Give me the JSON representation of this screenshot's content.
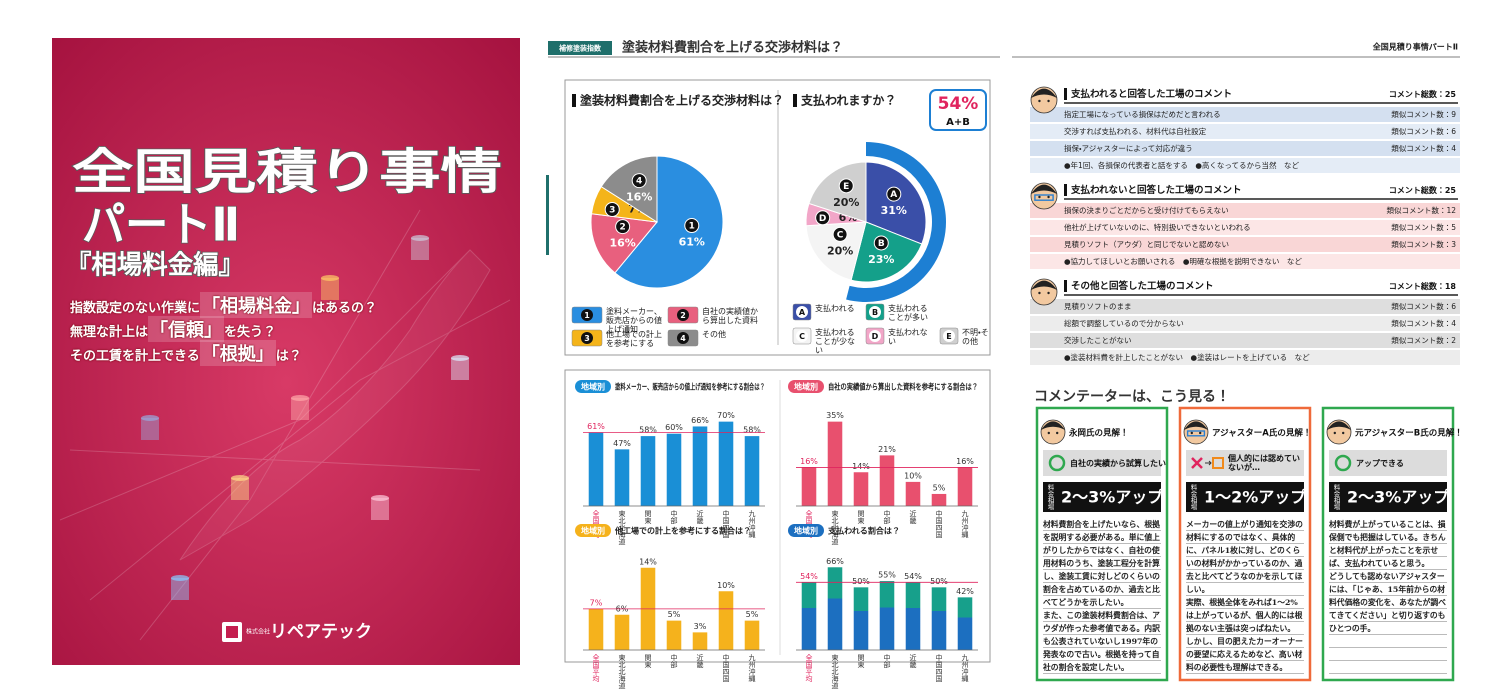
{
  "cover": {
    "title": "全国見積り事情",
    "part": "パートⅡ",
    "edition": "『相場料金編』",
    "lines": [
      [
        "指数設定のない作業に",
        "「相場料金」",
        "はあるの？"
      ],
      [
        "無理な計上は",
        "「信頼」",
        "を失う？"
      ],
      [
        "その工賃を計上できる",
        "「根拠」",
        "は？"
      ]
    ],
    "company_type": "株式会社",
    "company": "リペアテック"
  },
  "middle": {
    "tag": "補修塗装指数",
    "heading": "塗装材料費割合を上げる交渉材料は？",
    "pies": [
      {
        "type": "pie",
        "title": "塗装材料費割合を上げる交渉材料は？",
        "markers": [
          "1",
          "2",
          "3",
          "4"
        ],
        "values": [
          61,
          16,
          7,
          16
        ],
        "value_labels": [
          "61%",
          "16%",
          "7%",
          "16%"
        ],
        "colors": [
          "#2a8ee0",
          "#e8607e",
          "#f4b41a",
          "#8c8c8c"
        ],
        "legend": [
          "塗料メーカー、販売店からの値上げ通知",
          "自社の実績値から算出した資料",
          "他工場での計上を参考にする",
          "その他"
        ]
      },
      {
        "type": "pie",
        "title": "支払われますか？",
        "markers": [
          "A",
          "B",
          "C",
          "D",
          "E"
        ],
        "values": [
          31,
          23,
          20,
          6,
          20
        ],
        "value_labels": [
          "31%",
          "23%",
          "20%",
          "6%",
          "20%"
        ],
        "colors": [
          "#3a4fa8",
          "#14a08a",
          "#f4f4f4",
          "#f2a6c8",
          "#cfcfcf"
        ],
        "legend": [
          "支払われる",
          "支払われることが多い",
          "支払われることが少ない",
          "支払われない",
          "不明・その他"
        ],
        "callout": {
          "value": 54,
          "label": "54%"
        },
        "callout_sub": "A+B"
      }
    ],
    "bar_charts": [
      {
        "type": "bar",
        "badge": "地域別",
        "title": "塗料メーカー、販売店からの値上げ通知を参考にする割合は？",
        "categories": [
          "全国平均",
          "東北北海道",
          "関東",
          "中部",
          "近畿",
          "中国四国",
          "九州沖縄"
        ],
        "values": [
          61,
          47,
          58,
          60,
          66,
          70,
          58
        ],
        "value_labels": [
          "61%",
          "47%",
          "58%",
          "60%",
          "66%",
          "70%",
          "58%"
        ],
        "color": "#1a8fd6",
        "ylim": [
          0,
          78
        ]
      },
      {
        "type": "bar",
        "badge": "地域別",
        "title": "自社の実績値から算出した資料を参考にする割合は？",
        "categories": [
          "全国平均",
          "東北北海道",
          "関東",
          "中部",
          "近畿",
          "中国四国",
          "九州沖縄"
        ],
        "values": [
          16,
          35,
          14,
          21,
          10,
          5,
          16
        ],
        "value_labels": [
          "16%",
          "35%",
          "14%",
          "21%",
          "10%",
          "5%",
          "16%"
        ],
        "color": "#e8506e",
        "ylim": [
          0,
          39
        ]
      },
      {
        "type": "bar",
        "badge": "地域別",
        "title": "他工場での計上を参考にする割合は？",
        "categories": [
          "全国平均",
          "東北北海道",
          "関東",
          "中部",
          "近畿",
          "中国四国",
          "九州沖縄"
        ],
        "values": [
          7,
          6,
          14,
          5,
          3,
          10,
          5
        ],
        "value_labels": [
          "7%",
          "6%",
          "14%",
          "5%",
          "3%",
          "10%",
          "5%"
        ],
        "color": "#f5b21c",
        "ylim": [
          0,
          16
        ]
      },
      {
        "type": "bar",
        "badge": "地域別",
        "title": "支払われる割合は？",
        "categories": [
          "全国平均",
          "東北北海道",
          "関東",
          "中部",
          "近畿",
          "中国四国",
          "九州沖縄"
        ],
        "values": [
          54,
          66,
          50,
          55,
          54,
          50,
          42
        ],
        "value_labels": [
          "54%",
          "66%",
          "50%",
          "55%",
          "54%",
          "50%",
          "42%"
        ],
        "color": "#1c6fc0",
        "ylim": [
          0,
          75
        ]
      }
    ]
  },
  "right": {
    "running_head": "全国見積り事情パートⅡ",
    "comment_sections": [
      {
        "title": "支払われると回答した工場のコメント",
        "total": "コメント総数：25",
        "rows": [
          {
            "text": "指定工場になっている損保はだめだと言われる",
            "count": "類似コメント数：9"
          },
          {
            "text": "交渉すれば支払われる、材料代は自社設定",
            "count": "類似コメント数：6"
          },
          {
            "text": "損保・アジャスターによって対応が違う",
            "count": "類似コメント数：4"
          }
        ],
        "note": "●年1回、各損保の代表者と話をする　●高くなってるから当然　など"
      },
      {
        "title": "支払われないと回答した工場のコメント",
        "total": "コメント総数：25",
        "rows": [
          {
            "text": "損保の決まりごとだからと受け付けてもらえない",
            "count": "類似コメント数：12"
          },
          {
            "text": "他社が上げていないのに、特別扱いできないといわれる",
            "count": "類似コメント数：5"
          },
          {
            "text": "見積りソフト（アウダ）と同じでないと認めない",
            "count": "類似コメント数：3"
          }
        ],
        "note": "●協力してほしいとお願いされる　●明確な根拠を説明できない　など"
      },
      {
        "title": "その他と回答した工場のコメント",
        "total": "コメント総数：18",
        "rows": [
          {
            "text": "見積りソフトのまま",
            "count": "類似コメント数：6"
          },
          {
            "text": "総額で調整しているので分からない",
            "count": "類似コメント数：4"
          },
          {
            "text": "交渉したことがない",
            "count": "類似コメント数：2"
          }
        ],
        "note": "●塗装材料費を計上したことがない　●塗装はレートを上げている　など"
      }
    ],
    "commentator_heading": "コメンテーターは、こう見る！",
    "commentators": [
      {
        "name": "永岡氏の見解！",
        "stance": "自社の実績から試算したい",
        "rate_caption": "料金相場",
        "rate": "2～3%アップ",
        "body": [
          "材料費割合を上げたいなら、根拠を説明する必要がある。単に値上がりしたからではなく、自社の使用材料のうち、塗装工程分を計算し、塗装工賃に対しどのくらいの割合を占めているのか、過去と比べてどうかを示したい。",
          "また、この塗装材料費割合は、アウダが作った参考値である。内訳も公表されていないし1997年の発表なので古い。根拠を持って自社の割合を設定したい。"
        ]
      },
      {
        "name": "アジャスターA氏の見解！",
        "stance": "個人的には認めていないが…",
        "rate_caption": "料金相場",
        "rate": "1～2%アップ",
        "body": [
          "メーカーの値上がり通知を交渉の材料にするのではなく、具体的に、パネル1枚に対し、どのくらいの材料がかかっているのか、過去と比べてどうなのかを示してほしい。",
          "実際、根拠全体をみれば1～2%は上がっているが、個人的には根拠のない主張は突っぱねたい。",
          "しかし、目の肥えたカーオーナーの要望に応えるためなど、高い材料の必要性も理解はできる。"
        ]
      },
      {
        "name": "元アジャスターB氏の見解！",
        "stance": "アップできる",
        "rate_caption": "料金相場",
        "rate": "2～3%アップ",
        "body": [
          "材料費が上がっていることは、損保側でも把握はしている。きちんと材料代が上がったことを示せば、支払われていると思う。",
          "どうしても認めないアジャスターには、「じゃあ、15年前からの材料代価格の変化を、あなたが調べてきてください」と切り返すのもひとつの手。"
        ]
      }
    ]
  }
}
